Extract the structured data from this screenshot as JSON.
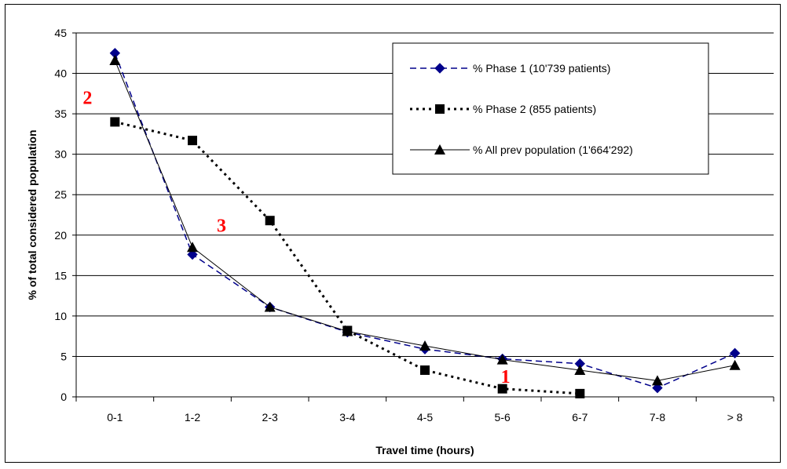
{
  "chart_data": {
    "type": "line",
    "categories": [
      "0-1",
      "1-2",
      "2-3",
      "3-4",
      "4-5",
      "5-6",
      "6-7",
      "7-8",
      "> 8"
    ],
    "series": [
      {
        "name": "% Phase 1 (10'739 patients)",
        "values": [
          42.5,
          17.6,
          11.1,
          8.0,
          5.9,
          4.7,
          4.1,
          1.1,
          5.4
        ],
        "color": "#00008b",
        "dash": "dashed",
        "marker": "diamond"
      },
      {
        "name": "% Phase 2 (855 patients)",
        "values": [
          34.0,
          31.7,
          21.8,
          8.2,
          3.3,
          1.0,
          0.4,
          null,
          null
        ],
        "color": "#000000",
        "dash": "dotted",
        "marker": "square"
      },
      {
        "name": "% All prev population (1'664'292)",
        "values": [
          41.6,
          18.5,
          11.1,
          8.1,
          6.3,
          4.6,
          3.3,
          2.0,
          3.9
        ],
        "color": "#000000",
        "dash": "solid",
        "marker": "triangle"
      }
    ],
    "xlabel": "Travel time (hours)",
    "ylabel": "% of total considered population",
    "ylim": [
      0,
      45
    ],
    "yticks": [
      0,
      5,
      10,
      15,
      20,
      25,
      30,
      35,
      40,
      45
    ],
    "grid": "horizontal",
    "legend_position": "top-right",
    "annotations": [
      {
        "text": "2",
        "x": "0-1",
        "y": 37,
        "color": "#ff0000"
      },
      {
        "text": "3",
        "x": "1-2",
        "y": 21.2,
        "color": "#ff0000"
      },
      {
        "text": "1",
        "x": "5-6",
        "y": 2.5,
        "color": "#ff0000"
      }
    ]
  }
}
